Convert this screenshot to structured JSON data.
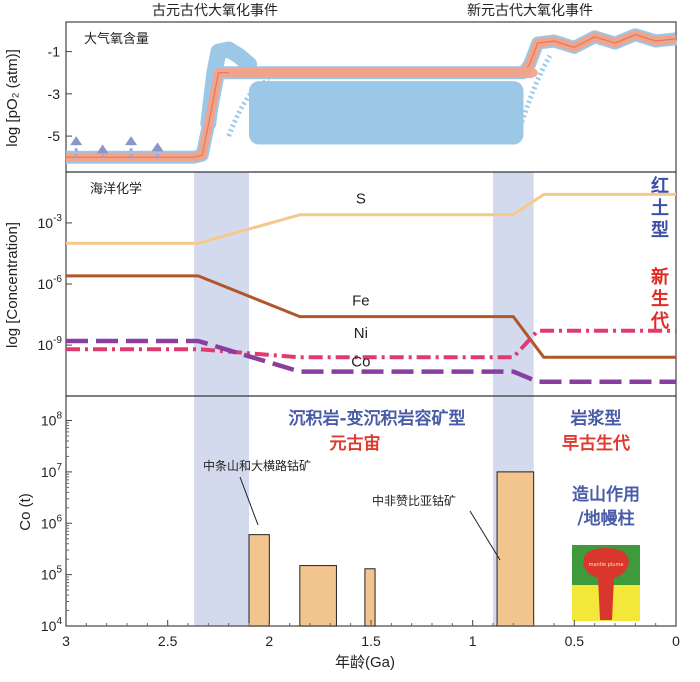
{
  "top_annotations": [
    "古元古代大氧化事件",
    "新元古代大氧化事件"
  ],
  "colors": {
    "oxygen_salmon": "#f0a48c",
    "oxygen_blue": "#9cc8e8",
    "oxygen_outline": "#e05a3a",
    "band": "#c6cde8",
    "S": "#f5c98a",
    "Fe": "#b0572a",
    "Ni": "#e03a6e",
    "Co": "#8a3fa0",
    "bar_fill": "#f2c58e",
    "bar_stroke": "#222222",
    "blue_text": "#4a5ca8",
    "red_text": "#e03a2e"
  },
  "chart_data": [
    {
      "type": "area",
      "panel": "top",
      "title": "大气氧含量",
      "ylabel": "log [pO₂ (atm)]",
      "yticks": [
        -1,
        -3,
        -5
      ],
      "xlim": [
        3,
        0
      ],
      "ylim": [
        -6.7,
        0.4
      ],
      "series": [
        {
          "name": "oxygen_low_band",
          "x": [
            3,
            2.37,
            2.33,
            2.3,
            2.25,
            2.2,
            0.75,
            0.72,
            0.68,
            0.6,
            0.5,
            0.4,
            0.3,
            0.2,
            0.1,
            0
          ],
          "y": [
            -6.0,
            -6.0,
            -5.9,
            -4.5,
            -2.0,
            -2.0,
            -2.0,
            -1.6,
            -0.6,
            -0.5,
            -0.8,
            -0.3,
            -0.6,
            -0.2,
            -0.5,
            -0.4
          ]
        },
        {
          "name": "oxygen_excursion",
          "x": [
            2.3,
            2.27,
            2.25,
            2.2,
            2.15,
            2.1
          ],
          "y": [
            -4.4,
            -2.0,
            -1.0,
            -0.9,
            -1.2,
            -1.6
          ]
        },
        {
          "name": "oxygen_arrows",
          "x": [
            2.95,
            2.82,
            2.68,
            2.55
          ],
          "y": [
            -5.0,
            -5.4,
            -5.0,
            -5.3
          ]
        },
        {
          "name": "oxygen_blue_box",
          "x": [
            2.1,
            0.75
          ],
          "y": [
            -2.4,
            -5.4
          ]
        }
      ]
    },
    {
      "type": "line",
      "panel": "middle",
      "title": "海洋化学",
      "ylabel": "log [Concentration]",
      "ytick_exponents": [
        -3,
        -6,
        -9
      ],
      "ylim_exponent": [
        -11.5,
        -0.5
      ],
      "xlim": [
        3,
        0
      ],
      "bands": [
        [
          2.37,
          2.1
        ],
        [
          0.9,
          0.7
        ]
      ],
      "series": [
        {
          "name": "S",
          "x": [
            3,
            2.35,
            1.85,
            0.8,
            0.65,
            0
          ],
          "y_exponent": [
            -4.0,
            -4.0,
            -2.6,
            -2.6,
            -1.6,
            -1.6
          ]
        },
        {
          "name": "Fe",
          "x": [
            3,
            2.35,
            1.85,
            0.8,
            0.65,
            0
          ],
          "y_exponent": [
            -5.6,
            -5.6,
            -7.6,
            -7.6,
            -9.6,
            -9.6
          ]
        },
        {
          "name": "Ni",
          "x": [
            3,
            2.35,
            1.85,
            0.8,
            0.68,
            0
          ],
          "y_exponent": [
            -9.2,
            -9.2,
            -9.6,
            -9.6,
            -8.3,
            -8.3
          ]
        },
        {
          "name": "Co",
          "x": [
            3,
            2.35,
            1.85,
            0.8,
            0.68,
            0
          ],
          "y_exponent": [
            -8.8,
            -8.8,
            -10.3,
            -10.3,
            -10.8,
            -10.8
          ]
        }
      ],
      "side_labels_blue": [
        "红",
        "土",
        "型"
      ],
      "side_labels_red": [
        "新",
        "生",
        "代"
      ]
    },
    {
      "type": "bar",
      "panel": "bottom",
      "ylabel": "Co (t)",
      "xlabel": "年龄(Ga)",
      "yscale": "log",
      "ytick_exponents": [
        4,
        5,
        6,
        7,
        8
      ],
      "ylim": [
        10000,
        300000000
      ],
      "xlim": [
        3,
        0
      ],
      "xticks": [
        "3",
        "2.5",
        "2",
        "1.5",
        "1",
        "0.5",
        "0"
      ],
      "bars": [
        {
          "x0": 2.1,
          "x1": 2.0,
          "value": 600000
        },
        {
          "x0": 1.85,
          "x1": 1.67,
          "value": 150000
        },
        {
          "x0": 1.53,
          "x1": 1.48,
          "value": 130000
        },
        {
          "x0": 0.88,
          "x1": 0.7,
          "value": 10000000
        }
      ],
      "labels": {
        "sediment_title": "沉积岩-变沉积岩容矿型",
        "sediment_era": "元古宙",
        "magma_title": "岩浆型",
        "magma_era": "早古生代",
        "orogen_line1": "造山作用",
        "orogen_line2": "/地幔柱",
        "deposit_1": "中条山和大横路钴矿",
        "deposit_2": "中非赞比亚钴矿",
        "plume_label": "mantle plume"
      }
    }
  ]
}
